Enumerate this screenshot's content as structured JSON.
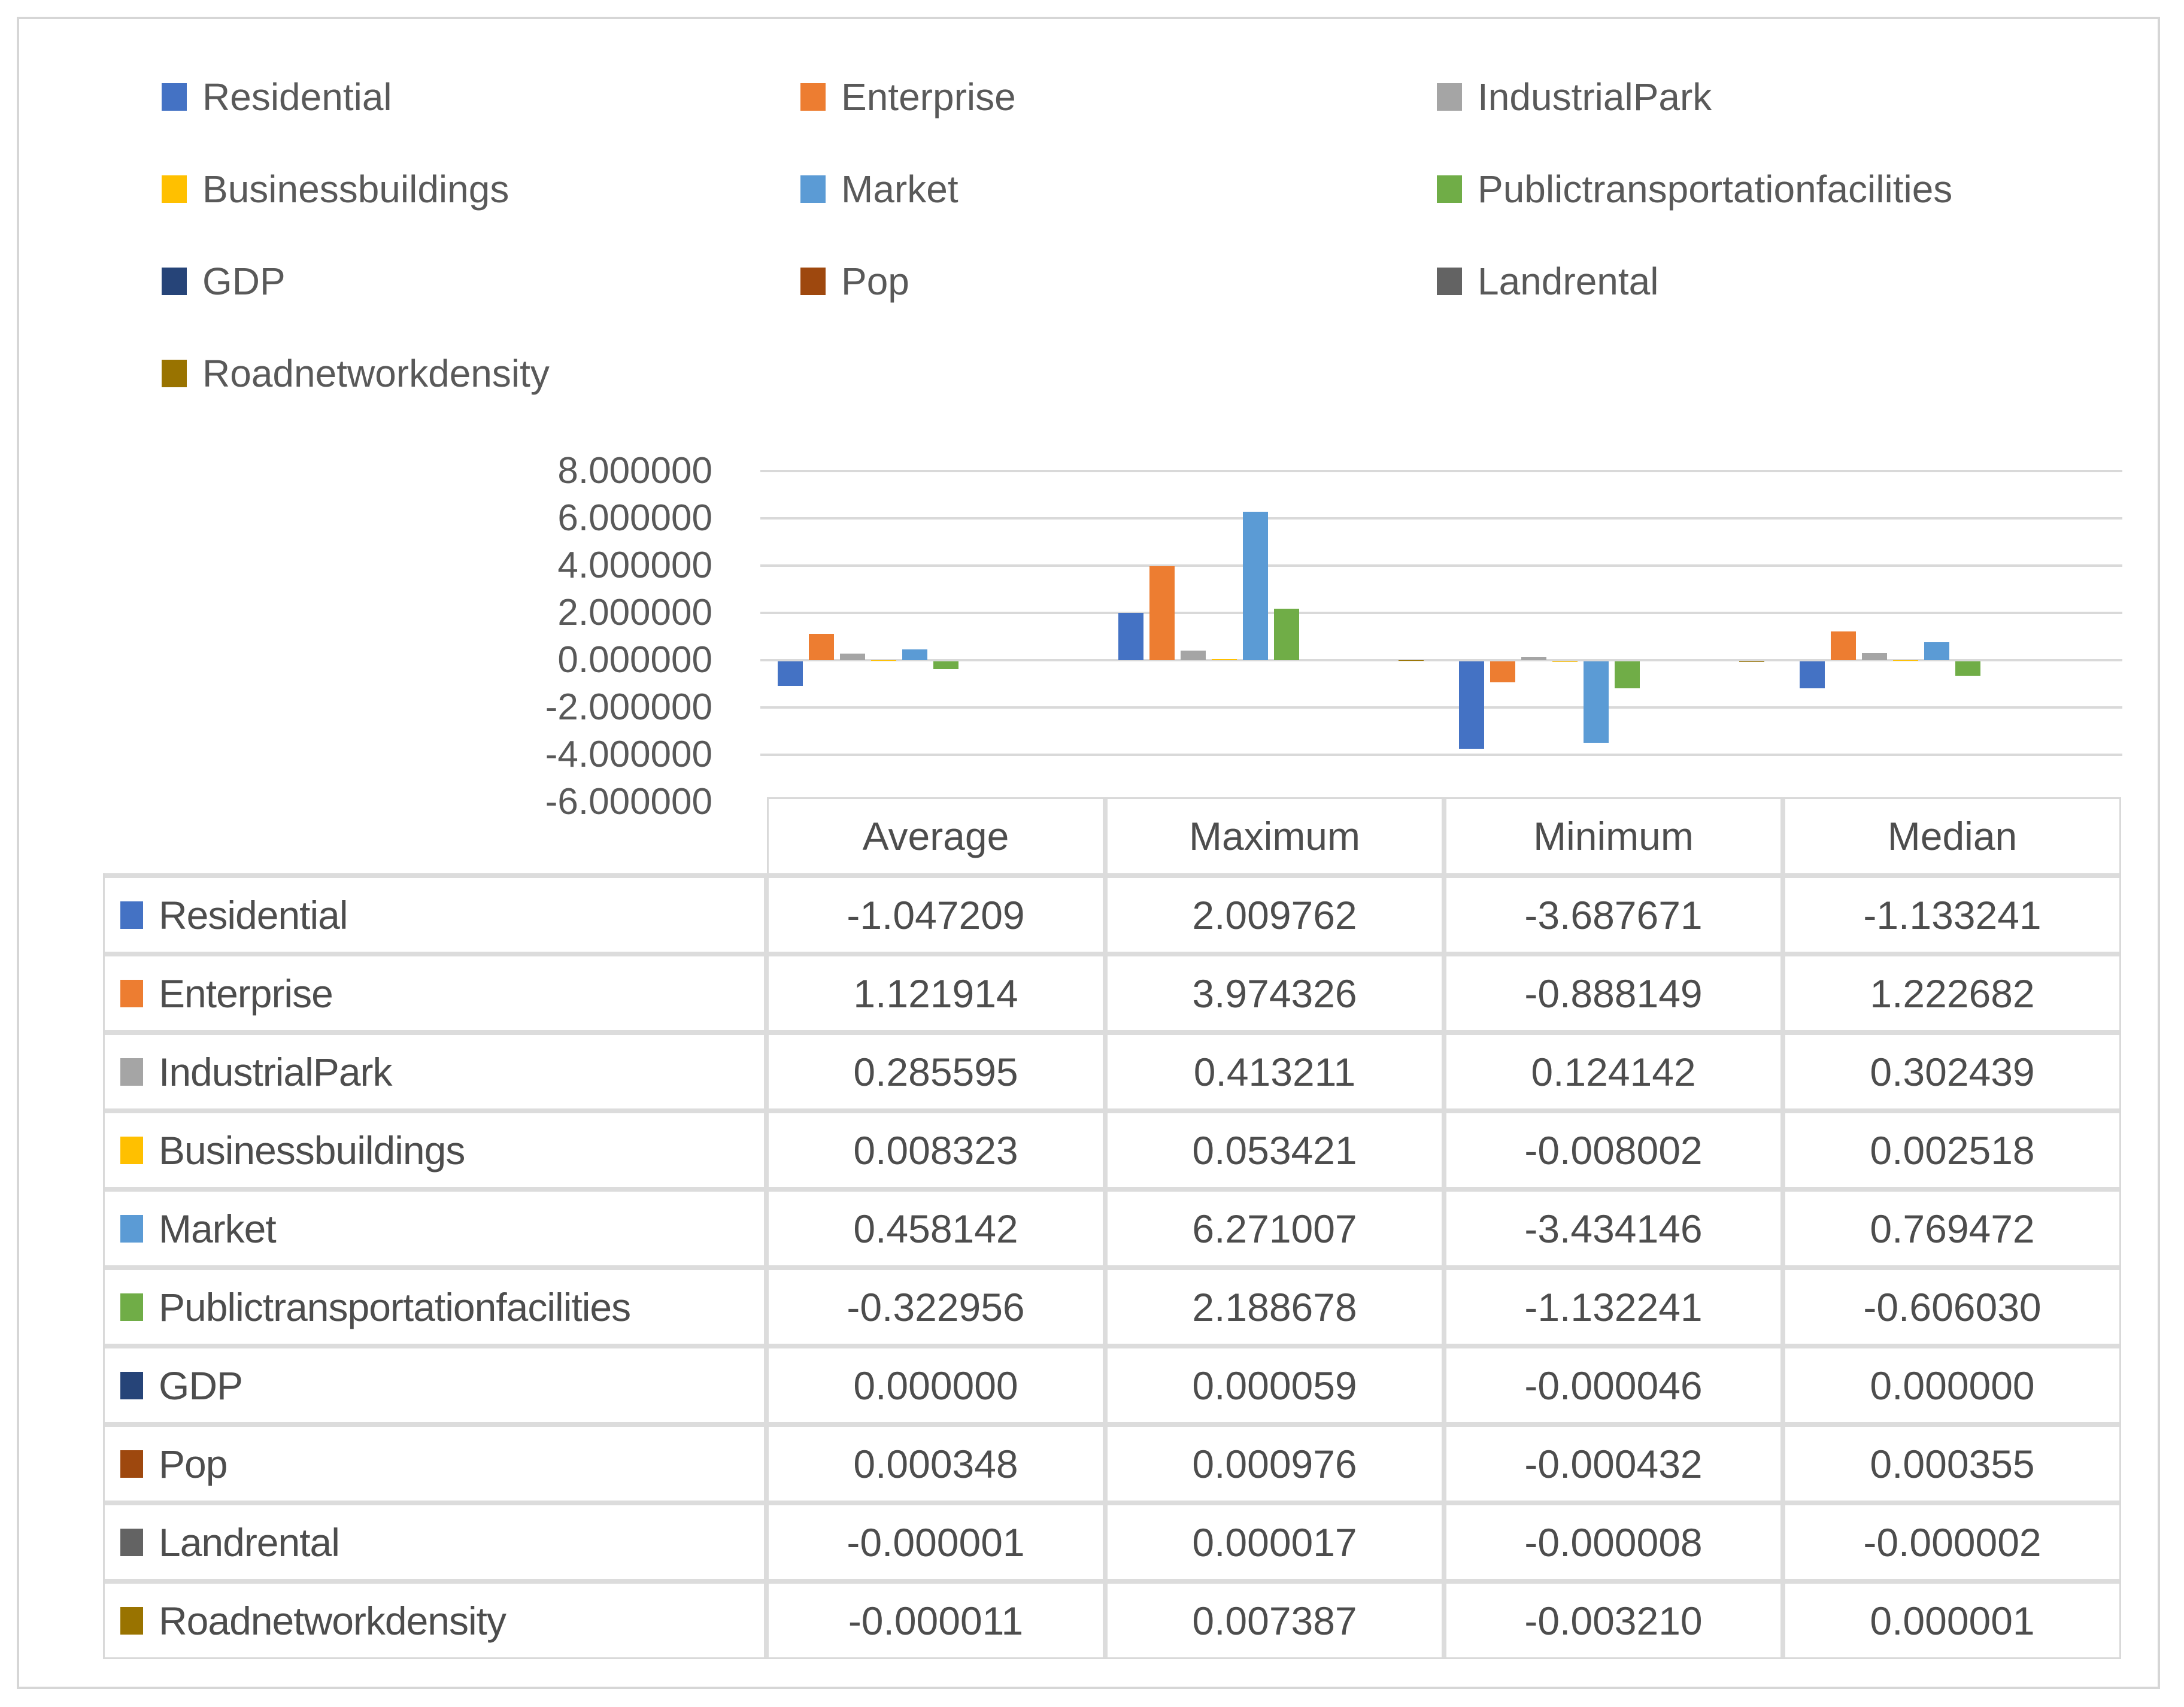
{
  "page": {
    "background": "#ffffff",
    "frame_border_color": "#d6d6d6"
  },
  "chart_data": {
    "type": "bar",
    "title": "",
    "xlabel": "",
    "ylabel": "",
    "categories": [
      "Average",
      "Maximum",
      "Minimum",
      "Median"
    ],
    "series": [
      {
        "name": "Residential",
        "color": "#4472C4",
        "values": [
          -1.047209,
          2.009762,
          -3.687671,
          -1.133241
        ]
      },
      {
        "name": "Enterprise",
        "color": "#ED7D31",
        "values": [
          1.121914,
          3.974326,
          -0.888149,
          1.222682
        ]
      },
      {
        "name": "IndustrialPark",
        "color": "#A5A5A5",
        "values": [
          0.285595,
          0.413211,
          0.124142,
          0.302439
        ]
      },
      {
        "name": "Businessbuildings",
        "color": "#FFC000",
        "values": [
          0.008323,
          0.053421,
          -0.008002,
          0.002518
        ]
      },
      {
        "name": "Market",
        "color": "#5B9BD5",
        "values": [
          0.458142,
          6.271007,
          -3.434146,
          0.769472
        ]
      },
      {
        "name": "Publictransportationfacilities",
        "color": "#70AD47",
        "values": [
          -0.322956,
          2.188678,
          -1.132241,
          -0.60603
        ]
      },
      {
        "name": "GDP",
        "color": "#264478",
        "values": [
          0.0,
          5.9e-05,
          -4.6e-05,
          0.0
        ]
      },
      {
        "name": "Pop",
        "color": "#9E480E",
        "values": [
          0.000348,
          0.000976,
          -0.000432,
          0.000355
        ]
      },
      {
        "name": "Landrental",
        "color": "#636363",
        "values": [
          -1e-06,
          1.7e-05,
          -8e-06,
          -2e-06
        ]
      },
      {
        "name": "Roadnetworkdensity",
        "color": "#997300",
        "values": [
          -1.1e-05,
          0.007387,
          -0.00321,
          1e-06
        ]
      }
    ],
    "ylim": [
      -6,
      8
    ],
    "ytick_step": 2,
    "ytick_labels": [
      "8.000000",
      "6.000000",
      "4.000000",
      "2.000000",
      "0.000000",
      "-2.000000",
      "-4.000000",
      "-6.000000"
    ],
    "grid": true,
    "gridline_color": "#d9d9d9",
    "legend_position": "top-left"
  },
  "table": {
    "columns": [
      "Average",
      "Maximum",
      "Minimum",
      "Median"
    ],
    "rows": [
      {
        "label": "Residential",
        "color": "#4472C4",
        "values": [
          "-1.047209",
          "2.009762",
          "-3.687671",
          "-1.133241"
        ]
      },
      {
        "label": "Enterprise",
        "color": "#ED7D31",
        "values": [
          "1.121914",
          "3.974326",
          "-0.888149",
          "1.222682"
        ]
      },
      {
        "label": "IndustrialPark",
        "color": "#A5A5A5",
        "values": [
          "0.285595",
          "0.413211",
          "0.124142",
          "0.302439"
        ]
      },
      {
        "label": "Businessbuildings",
        "color": "#FFC000",
        "values": [
          "0.008323",
          "0.053421",
          "-0.008002",
          "0.002518"
        ]
      },
      {
        "label": "Market",
        "color": "#5B9BD5",
        "values": [
          "0.458142",
          "6.271007",
          "-3.434146",
          "0.769472"
        ]
      },
      {
        "label": "Publictransportationfacilities",
        "color": "#70AD47",
        "values": [
          "-0.322956",
          "2.188678",
          "-1.132241",
          "-0.606030"
        ]
      },
      {
        "label": "GDP",
        "color": "#264478",
        "values": [
          "0.000000",
          "0.000059",
          "-0.000046",
          "0.000000"
        ]
      },
      {
        "label": "Pop",
        "color": "#9E480E",
        "values": [
          "0.000348",
          "0.000976",
          "-0.000432",
          "0.000355"
        ]
      },
      {
        "label": "Landrental",
        "color": "#636363",
        "values": [
          "-0.000001",
          "0.000017",
          "-0.000008",
          "-0.000002"
        ]
      },
      {
        "label": "Roadnetworkdensity",
        "color": "#997300",
        "values": [
          "-0.000011",
          "0.007387",
          "-0.003210",
          "0.000001"
        ]
      }
    ]
  }
}
